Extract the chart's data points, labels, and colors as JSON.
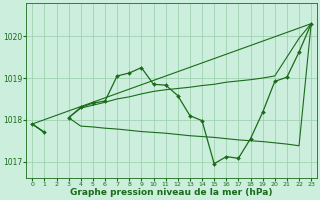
{
  "bg_color": "#cceedd",
  "grid_color": "#99ccaa",
  "line_color": "#1a6b1a",
  "xlabel": "Graphe pression niveau de la mer (hPa)",
  "xlabel_fontsize": 6.5,
  "ylim": [
    1016.6,
    1020.8
  ],
  "xlim": [
    -0.5,
    23.5
  ],
  "yticks": [
    1017,
    1018,
    1019,
    1020
  ],
  "xticks": [
    0,
    1,
    2,
    3,
    4,
    5,
    6,
    7,
    8,
    9,
    10,
    11,
    12,
    13,
    14,
    15,
    16,
    17,
    18,
    19,
    20,
    21,
    22,
    23
  ],
  "y1": [
    1017.9,
    1017.7,
    null,
    1018.05,
    1018.3,
    1018.4,
    1018.45,
    1019.05,
    1019.12,
    1019.25,
    1018.85,
    1018.83,
    1018.58,
    1018.1,
    1017.98,
    1016.95,
    1017.12,
    1017.08,
    1017.55,
    1018.18,
    1018.92,
    1019.02,
    1019.62,
    1020.3
  ],
  "y2": [
    1017.9,
    1017.7,
    null,
    1018.05,
    1018.28,
    1018.35,
    1018.42,
    1018.5,
    1018.55,
    1018.62,
    1018.68,
    1018.72,
    1018.75,
    1018.78,
    1018.82,
    1018.85,
    1018.9,
    1018.93,
    1018.96,
    1019.0,
    1019.05,
    1019.5,
    1019.95,
    1020.3
  ],
  "y3": [
    1017.9,
    1017.7,
    null,
    1018.05,
    1017.85,
    1017.83,
    1017.8,
    1017.78,
    1017.75,
    1017.72,
    1017.7,
    1017.68,
    1017.65,
    1017.62,
    1017.6,
    1017.58,
    1017.55,
    1017.52,
    1017.5,
    1017.48,
    1017.45,
    1017.42,
    1017.38,
    1020.3
  ],
  "y4": [
    1017.9,
    null,
    null,
    null,
    null,
    null,
    null,
    null,
    null,
    null,
    null,
    null,
    null,
    null,
    null,
    null,
    null,
    null,
    null,
    null,
    null,
    null,
    null,
    1020.3
  ]
}
